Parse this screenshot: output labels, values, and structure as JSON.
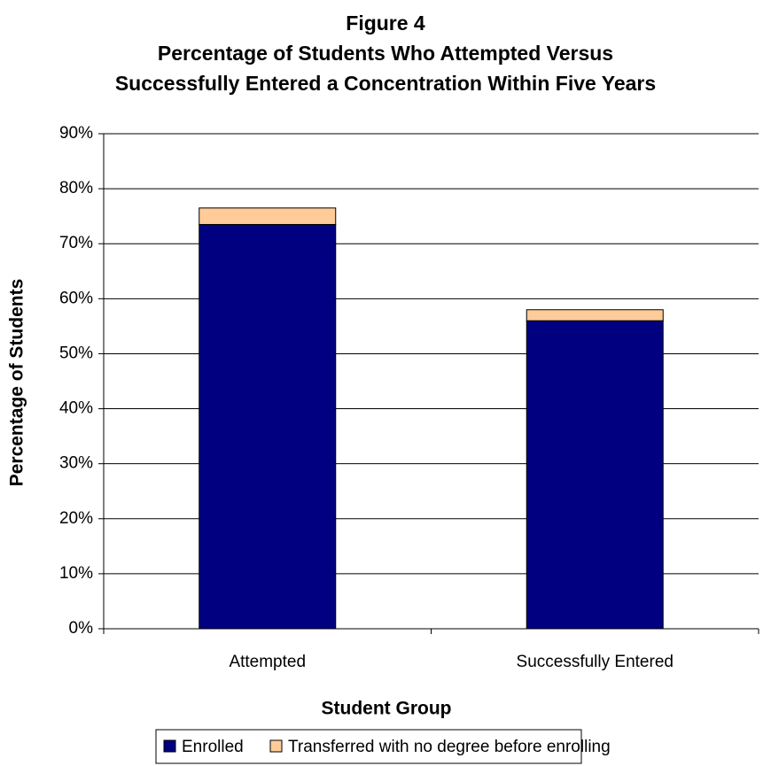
{
  "chart_data": {
    "type": "bar",
    "stacked": true,
    "title_line1": "Figure 4",
    "title_line2": "Percentage of Students Who Attempted Versus",
    "title_line3": "Successfully Entered a Concentration Within Five Years",
    "xlabel": "Student Group",
    "ylabel": "Percentage of Students",
    "categories": [
      "Attempted",
      "Successfully Entered"
    ],
    "series": [
      {
        "name": "Enrolled",
        "values": [
          73.5,
          56.0
        ],
        "color": "#000080"
      },
      {
        "name": "Transferred with no degree before enrolling",
        "values": [
          3.0,
          2.0
        ],
        "color": "#FFCC99"
      }
    ],
    "ylim": [
      0,
      90
    ],
    "yticks": [
      0,
      10,
      20,
      30,
      40,
      50,
      60,
      70,
      80,
      90
    ],
    "ytick_labels": [
      "0%",
      "10%",
      "20%",
      "30%",
      "40%",
      "50%",
      "60%",
      "70%",
      "80%",
      "90%"
    ],
    "grid": true,
    "legend_position": "bottom"
  }
}
